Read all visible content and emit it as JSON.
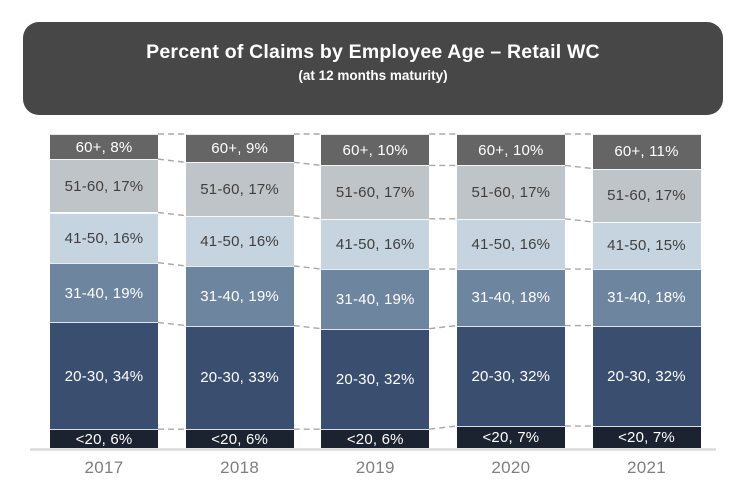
{
  "title": {
    "text": "Percent of Claims by Employee Age – Retail WC",
    "subtitle": "(at 12 months maturity)"
  },
  "colors": {
    "title_bg": "#474747",
    "title_fg": "#ffffff",
    "connector": "#a8a8a8",
    "baseline": "#dcdcdc",
    "axis_label": "#7f7f7f",
    "background": "#ffffff"
  },
  "chart_data": {
    "type": "bar",
    "variant": "stacked-100-percent-column",
    "title": "Percent of Claims by Employee Age – Retail WC",
    "subtitle": "(at 12 months maturity)",
    "categories": [
      "2017",
      "2018",
      "2019",
      "2020",
      "2021"
    ],
    "series": [
      {
        "name": "<20",
        "color": "#1b2230",
        "label_color": "#ffffff",
        "values": [
          6,
          6,
          6,
          7,
          7
        ]
      },
      {
        "name": "20-30",
        "color": "#3a4f70",
        "label_color": "#ffffff",
        "values": [
          34,
          33,
          32,
          32,
          32
        ]
      },
      {
        "name": "31-40",
        "color": "#6e85a0",
        "label_color": "#ffffff",
        "values": [
          19,
          19,
          19,
          18,
          18
        ]
      },
      {
        "name": "41-50",
        "color": "#c6d4e0",
        "label_color": "#404040",
        "values": [
          16,
          16,
          16,
          16,
          15
        ]
      },
      {
        "name": "51-60",
        "color": "#bfc4c8",
        "label_color": "#404040",
        "values": [
          17,
          17,
          17,
          17,
          17
        ]
      },
      {
        "name": "60+",
        "color": "#656565",
        "label_color": "#ffffff",
        "values": [
          8,
          9,
          10,
          10,
          11
        ]
      }
    ],
    "label_format": "{series}, {value}%",
    "value_unit": "%",
    "ylim": [
      0,
      100
    ],
    "grid": false,
    "legend": "none",
    "annotations": "segment labels inside bars; dashed connector lines between adjacent bars at segment boundaries"
  }
}
